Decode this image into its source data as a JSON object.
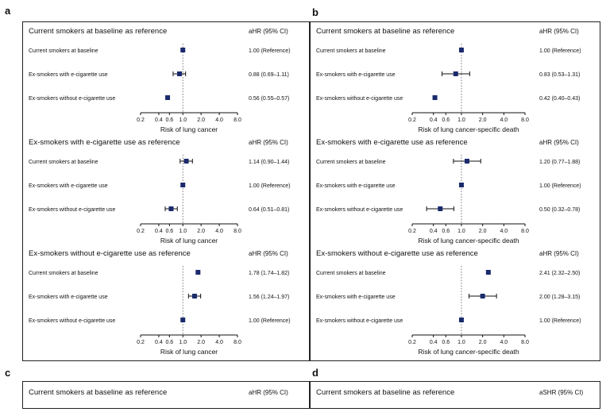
{
  "panels": [
    {
      "letter": "a",
      "axis_label": "Risk of lung cancer",
      "chart_data": [
        {
          "type": "forest",
          "title": "Current smokers at baseline as reference",
          "value_header": "aHR (95% CI)",
          "xlabel": "Risk of lung cancer",
          "x_scale": "log",
          "xticks": [
            "0.2",
            "0.4",
            "0.6",
            "1.0",
            "2.0",
            "4.0",
            "8.0"
          ],
          "xlim": [
            0.2,
            8.0
          ],
          "reference_line": 1.0,
          "rows": [
            {
              "label": "Current smokers at baseline",
              "est": 1.0,
              "lo": 1.0,
              "hi": 1.0,
              "text": "1.00 (Reference)"
            },
            {
              "label": "Ex-smokers with e-cigarette use",
              "est": 0.88,
              "lo": 0.69,
              "hi": 1.11,
              "text": "0.88 (0.69–1.11)"
            },
            {
              "label": "Ex-smokers without e-cigarette use",
              "est": 0.56,
              "lo": 0.55,
              "hi": 0.57,
              "text": "0.56 (0.55–0.57)"
            }
          ]
        },
        {
          "type": "forest",
          "title": "Ex-smokers with e-cigarette use as reference",
          "value_header": "aHR (95% CI)",
          "xlabel": "Risk of lung cancer",
          "x_scale": "log",
          "xticks": [
            "0.2",
            "0.4",
            "0.6",
            "1.0",
            "2.0",
            "4.0",
            "8.0"
          ],
          "xlim": [
            0.2,
            8.0
          ],
          "reference_line": 1.0,
          "rows": [
            {
              "label": "Current smokers at baseline",
              "est": 1.14,
              "lo": 0.9,
              "hi": 1.44,
              "text": "1.14 (0.90–1.44)"
            },
            {
              "label": "Ex-smokers with e-cigarette use",
              "est": 1.0,
              "lo": 1.0,
              "hi": 1.0,
              "text": "1.00 (Reference)"
            },
            {
              "label": "Ex-smokers without e-cigarette use",
              "est": 0.64,
              "lo": 0.51,
              "hi": 0.81,
              "text": "0.64 (0.51–0.81)"
            }
          ]
        },
        {
          "type": "forest",
          "title": "Ex-smokers without e-cigarette use as reference",
          "value_header": "aHR (95% CI)",
          "xlabel": "Risk of lung cancer",
          "x_scale": "log",
          "xticks": [
            "0.2",
            "0.4",
            "0.6",
            "1.0",
            "2.0",
            "4.0",
            "8.0"
          ],
          "xlim": [
            0.2,
            8.0
          ],
          "reference_line": 1.0,
          "rows": [
            {
              "label": "Current smokers at baseline",
              "est": 1.78,
              "lo": 1.74,
              "hi": 1.82,
              "text": "1.78 (1.74–1.82)"
            },
            {
              "label": "Ex-smokers with e-cigarette use",
              "est": 1.56,
              "lo": 1.24,
              "hi": 1.97,
              "text": "1.56 (1.24–1.97)"
            },
            {
              "label": "Ex-smokers without e-cigarette use",
              "est": 1.0,
              "lo": 1.0,
              "hi": 1.0,
              "text": "1.00 (Reference)"
            }
          ]
        }
      ]
    },
    {
      "letter": "b",
      "axis_label": "Risk of lung cancer-specific death",
      "chart_data": [
        {
          "type": "forest",
          "title": "Current smokers at baseline as reference",
          "value_header": "aHR (95% CI)",
          "xlabel": "Risk of lung cancer-specific death",
          "x_scale": "log",
          "xticks": [
            "0.2",
            "0.4",
            "0.6",
            "1.0",
            "2.0",
            "4.0",
            "8.0"
          ],
          "xlim": [
            0.2,
            8.0
          ],
          "reference_line": 1.0,
          "rows": [
            {
              "label": "Current smokers at baseline",
              "est": 1.0,
              "lo": 1.0,
              "hi": 1.0,
              "text": "1.00 (Reference)"
            },
            {
              "label": "Ex-smokers with e-cigarette use",
              "est": 0.83,
              "lo": 0.53,
              "hi": 1.31,
              "text": "0.83 (0.53–1.31)"
            },
            {
              "label": "Ex-smokers without e-cigarette use",
              "est": 0.42,
              "lo": 0.4,
              "hi": 0.43,
              "text": "0.42 (0.40–0.43)"
            }
          ]
        },
        {
          "type": "forest",
          "title": "Ex-smokers with e-cigarette use as reference",
          "value_header": "aHR (95% CI)",
          "xlabel": "Risk of lung cancer-specific death",
          "x_scale": "log",
          "xticks": [
            "0.2",
            "0.4",
            "0.6",
            "1.0",
            "2.0",
            "4.0",
            "8.0"
          ],
          "xlim": [
            0.2,
            8.0
          ],
          "reference_line": 1.0,
          "rows": [
            {
              "label": "Current smokers at baseline",
              "est": 1.2,
              "lo": 0.77,
              "hi": 1.88,
              "text": "1.20 (0.77–1.88)"
            },
            {
              "label": "Ex-smokers with e-cigarette use",
              "est": 1.0,
              "lo": 1.0,
              "hi": 1.0,
              "text": "1.00 (Reference)"
            },
            {
              "label": "Ex-smokers without e-cigarette use",
              "est": 0.5,
              "lo": 0.32,
              "hi": 0.78,
              "text": "0.50 (0.32–0.78)"
            }
          ]
        },
        {
          "type": "forest",
          "title": "Ex-smokers without e-cigarette use as reference",
          "value_header": "aHR (95% CI)",
          "xlabel": "Risk of lung cancer-specific death",
          "x_scale": "log",
          "xticks": [
            "0.2",
            "0.4",
            "0.6",
            "1.0",
            "2.0",
            "4.0",
            "8.0"
          ],
          "xlim": [
            0.2,
            8.0
          ],
          "reference_line": 1.0,
          "rows": [
            {
              "label": "Current smokers at baseline",
              "est": 2.41,
              "lo": 2.32,
              "hi": 2.5,
              "text": "2.41 (2.32–2.50)"
            },
            {
              "label": "Ex-smokers with e-cigarette use",
              "est": 2.0,
              "lo": 1.28,
              "hi": 3.15,
              "text": "2.00 (1.28–3.15)"
            },
            {
              "label": "Ex-smokers without e-cigarette use",
              "est": 1.0,
              "lo": 1.0,
              "hi": 1.0,
              "text": "1.00 (Reference)"
            }
          ]
        }
      ]
    },
    {
      "letter": "c",
      "chart_data": [
        {
          "type": "forest",
          "title": "Current smokers at baseline as reference",
          "value_header": "aHR (95% CI)",
          "rows": []
        }
      ]
    },
    {
      "letter": "d",
      "chart_data": [
        {
          "type": "forest",
          "title": "Current smokers at baseline as reference",
          "value_header": "aSHR (95% CI)",
          "rows": []
        }
      ]
    }
  ],
  "colors": {
    "marker": "#1a2a6c",
    "ci_line": "#111111",
    "reference_line": "#555555",
    "border": "#222222",
    "text": "#111111"
  }
}
